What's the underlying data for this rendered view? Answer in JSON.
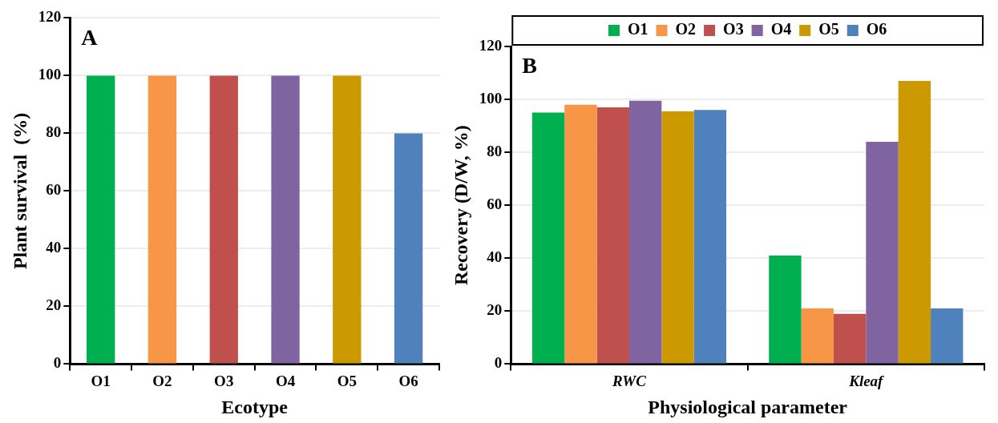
{
  "chart_data": [
    {
      "type": "bar",
      "annotations": [
        "A"
      ],
      "xlabel": "Ecotype",
      "ylabel": "Plant survival  (%)",
      "categories": [
        "O1",
        "O2",
        "O3",
        "O4",
        "O5",
        "O6"
      ],
      "values": [
        100,
        100,
        100,
        100,
        100,
        80
      ],
      "colors": [
        "#00b050",
        "#f79646",
        "#c0504d",
        "#8064a2",
        "#cc9900",
        "#4f81bd"
      ],
      "ylim": [
        0,
        120
      ],
      "yticks": [
        0,
        20,
        40,
        60,
        80,
        100,
        120
      ],
      "grid": "y",
      "legend": false
    },
    {
      "type": "bar",
      "annotations": [
        "B"
      ],
      "xlabel": "Physiological parameter",
      "ylabel": "Recovery (D/W, %)",
      "categories": [
        "RWC",
        "Kleaf"
      ],
      "series": [
        {
          "name": "O1",
          "color": "#00b050",
          "values": [
            95,
            41
          ]
        },
        {
          "name": "O2",
          "color": "#f79646",
          "values": [
            98,
            21
          ]
        },
        {
          "name": "O3",
          "color": "#c0504d",
          "values": [
            97,
            19
          ]
        },
        {
          "name": "O4",
          "color": "#8064a2",
          "values": [
            99.5,
            84
          ]
        },
        {
          "name": "O5",
          "color": "#cc9900",
          "values": [
            95.5,
            107
          ]
        },
        {
          "name": "O6",
          "color": "#4f81bd",
          "values": [
            96,
            21
          ]
        }
      ],
      "ylim": [
        0,
        120
      ],
      "yticks": [
        0,
        20,
        40,
        60,
        80,
        100,
        120
      ],
      "grid": "y",
      "legend": "top"
    }
  ]
}
